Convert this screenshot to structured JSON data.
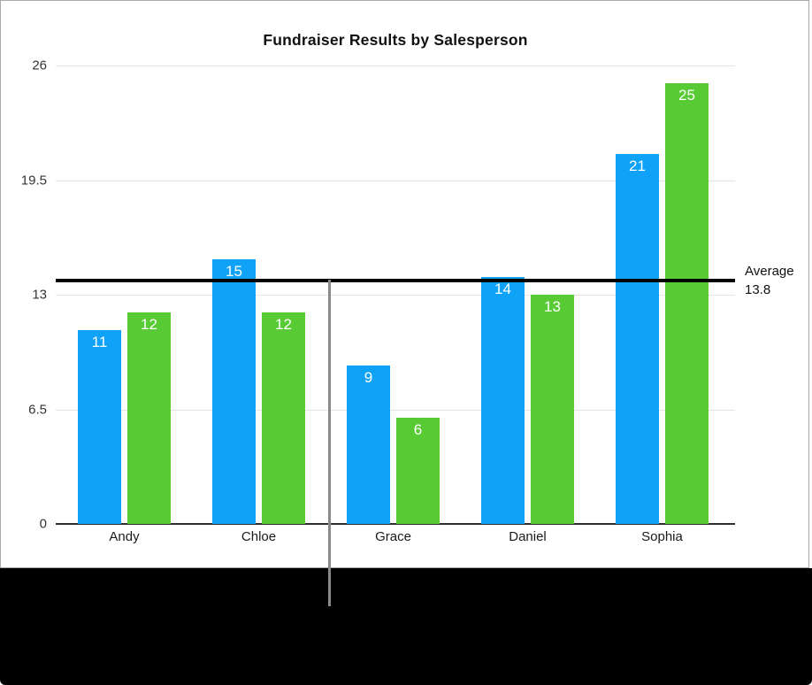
{
  "chart_data": {
    "type": "bar",
    "title": "Fundraiser Results by Salesperson",
    "categories": [
      "Andy",
      "Chloe",
      "Grace",
      "Daniel",
      "Sophia"
    ],
    "series": [
      {
        "name": "blue",
        "color": "#0fa2f7",
        "values": [
          11,
          15,
          9,
          14,
          21
        ]
      },
      {
        "name": "green",
        "color": "#58cb34",
        "values": [
          12,
          12,
          6,
          13,
          25
        ]
      }
    ],
    "y_ticks": [
      {
        "label": "26",
        "value": 26
      },
      {
        "label": "19.5",
        "value": 19.5
      },
      {
        "label": "13",
        "value": 13
      },
      {
        "label": "6.5",
        "value": 6.5
      },
      {
        "label": "0",
        "value": 0
      }
    ],
    "ylim": [
      0,
      26
    ],
    "grid": true,
    "legend": "none",
    "bar_value_labels": true,
    "average_line": {
      "label": "Average",
      "value_label": "13.8",
      "value": 13.8,
      "color": "#000000"
    },
    "colors": {
      "gridline": "#e4e4e4",
      "baseline": "#2f2f2f",
      "axis_text": "#333333",
      "bar_label_text": "#ffffff"
    }
  },
  "figure": {
    "background": "#ffffff",
    "border_color": "#a9a9a9",
    "pointer_line_color": "#8a8a8a",
    "bottom_band_color": "#000000"
  }
}
